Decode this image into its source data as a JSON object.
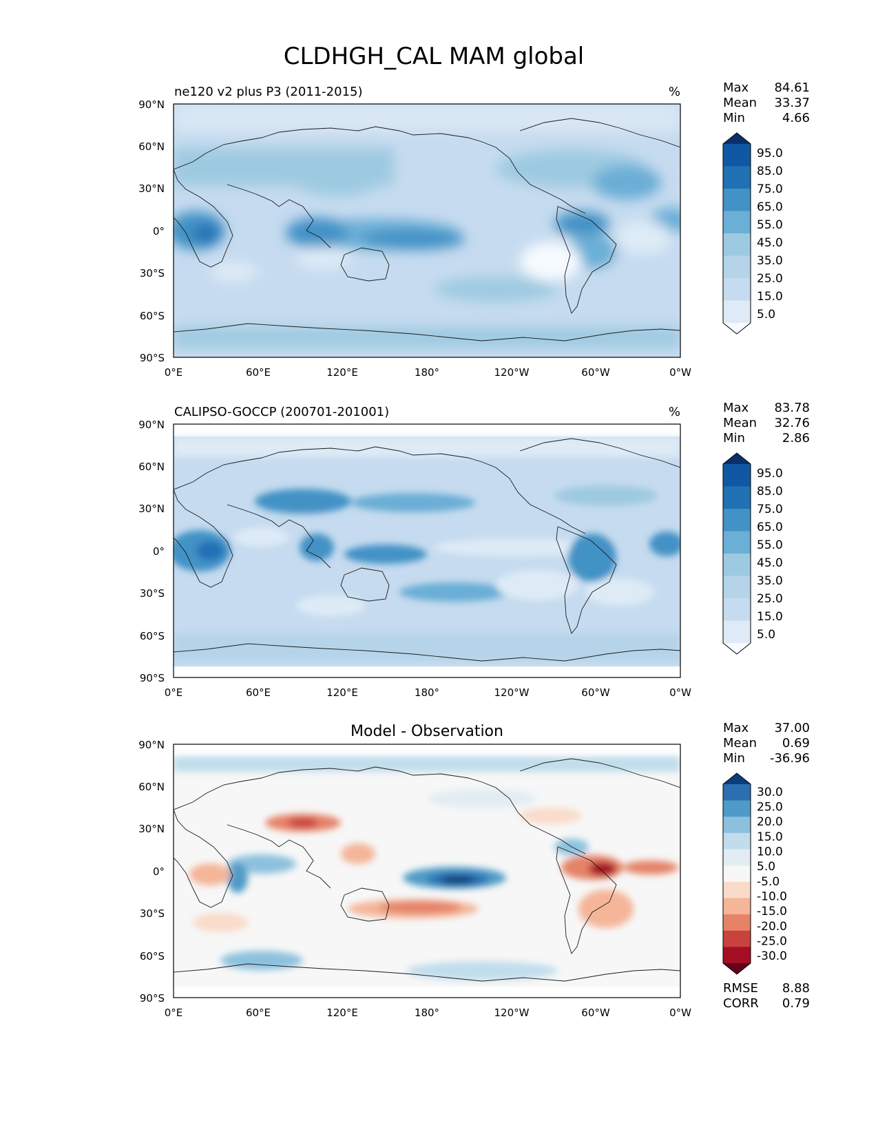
{
  "figure_title": "CLDHGH_CAL MAM global",
  "colors": {
    "seq_blues": [
      "#f7fbff",
      "#deebf7",
      "#c6dbef",
      "#b5d4e9",
      "#9ecae1",
      "#6baed6",
      "#4292c6",
      "#2171b5",
      "#1058a4",
      "#08306b"
    ],
    "diverging": [
      "#67001f",
      "#a50f24",
      "#c8423e",
      "#e58267",
      "#f4b599",
      "#f9dbc9",
      "#f7f7f7",
      "#e1edf3",
      "#c1ddec",
      "#8cc1de",
      "#4f9bc7",
      "#2b6fb0",
      "#0b3c7c"
    ]
  },
  "chart_data": [
    {
      "type": "heatmap",
      "panel_title": "ne120 v2 plus P3 (2011-2015)",
      "units": "%",
      "stats": {
        "max_label": "Max",
        "max": "84.61",
        "mean_label": "Mean",
        "mean": "33.37",
        "min_label": "Min",
        "min": "4.66"
      },
      "xlim": [
        0,
        360
      ],
      "ylim": [
        -90,
        90
      ],
      "x_ticks": [
        "0°E",
        "60°E",
        "120°E",
        "180°",
        "120°W",
        "60°W",
        "0°W"
      ],
      "y_ticks": [
        "90°N",
        "60°N",
        "30°N",
        "0°",
        "30°S",
        "60°S",
        "90°S"
      ],
      "colorbar": {
        "levels": [
          "95.0",
          "85.0",
          "75.0",
          "65.0",
          "55.0",
          "45.0",
          "35.0",
          "25.0",
          "15.0",
          "5.0"
        ],
        "extend": "both",
        "palette": "seq_blues"
      }
    },
    {
      "type": "heatmap",
      "panel_title": "CALIPSO-GOCCP (200701-201001)",
      "units": "%",
      "stats": {
        "max_label": "Max",
        "max": "83.78",
        "mean_label": "Mean",
        "mean": "32.76",
        "min_label": "Min",
        "min": "2.86"
      },
      "xlim": [
        0,
        360
      ],
      "ylim": [
        -90,
        90
      ],
      "x_ticks": [
        "0°E",
        "60°E",
        "120°E",
        "180°",
        "120°W",
        "60°W",
        "0°W"
      ],
      "y_ticks": [
        "90°N",
        "60°N",
        "30°N",
        "0°",
        "30°S",
        "60°S",
        "90°S"
      ],
      "colorbar": {
        "levels": [
          "95.0",
          "85.0",
          "75.0",
          "65.0",
          "55.0",
          "45.0",
          "35.0",
          "25.0",
          "15.0",
          "5.0"
        ],
        "extend": "both",
        "palette": "seq_blues"
      }
    },
    {
      "type": "heatmap",
      "panel_title": "Model - Observation",
      "units": "",
      "stats": {
        "max_label": "Max",
        "max": "37.00",
        "mean_label": "Mean",
        "mean": "0.69",
        "min_label": "Min",
        "min": "-36.96"
      },
      "xlim": [
        0,
        360
      ],
      "ylim": [
        -90,
        90
      ],
      "x_ticks": [
        "0°E",
        "60°E",
        "120°E",
        "180°",
        "120°W",
        "60°W",
        "0°W"
      ],
      "y_ticks": [
        "90°N",
        "60°N",
        "30°N",
        "0°",
        "30°S",
        "60°S",
        "90°S"
      ],
      "colorbar": {
        "levels": [
          "30.0",
          "25.0",
          "20.0",
          "15.0",
          "10.0",
          "5.0",
          "-5.0",
          "-10.0",
          "-15.0",
          "-20.0",
          "-25.0",
          "-30.0"
        ],
        "extend": "both",
        "palette": "diverging"
      },
      "metrics": {
        "rmse_label": "RMSE",
        "rmse": "8.88",
        "corr_label": "CORR",
        "corr": "0.79"
      }
    }
  ]
}
